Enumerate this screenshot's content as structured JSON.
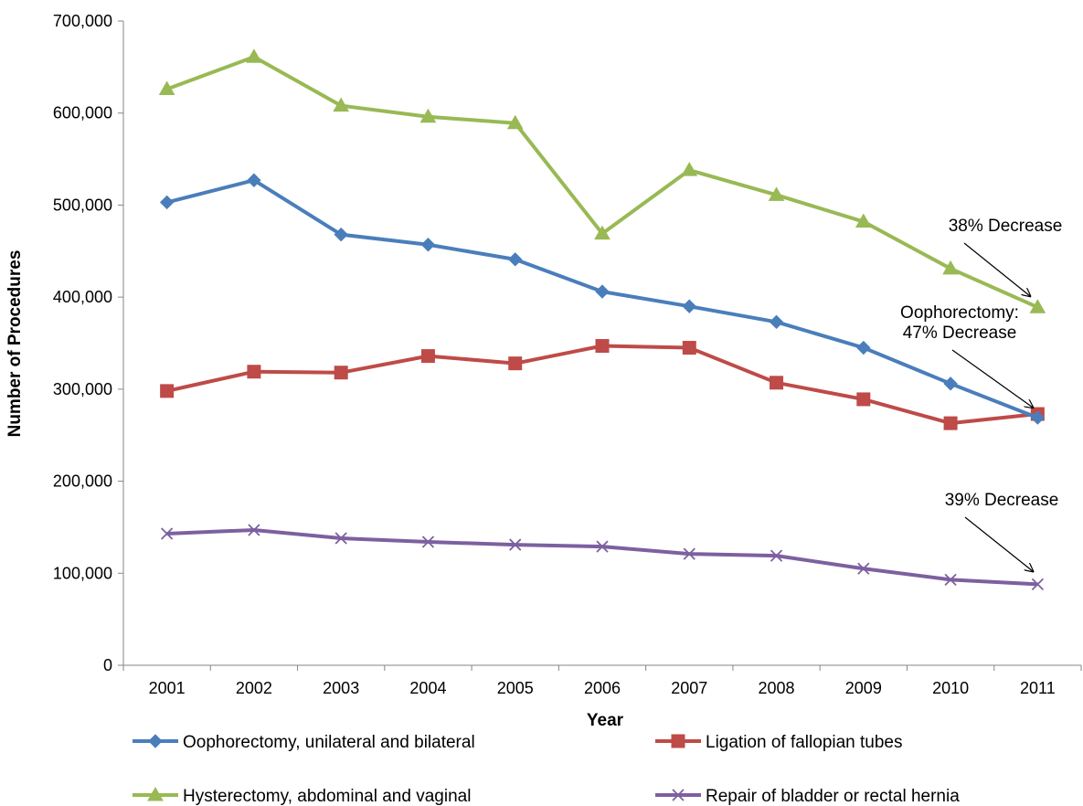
{
  "chart_data": {
    "type": "line",
    "title": "",
    "xlabel": "Year",
    "ylabel": "Number of Procedures",
    "x": [
      "2001",
      "2002",
      "2003",
      "2004",
      "2005",
      "2006",
      "2007",
      "2008",
      "2009",
      "2010",
      "2011"
    ],
    "ylim": [
      0,
      700000
    ],
    "yticks": [
      0,
      100000,
      200000,
      300000,
      400000,
      500000,
      600000,
      700000
    ],
    "ytick_labels": [
      "0",
      "100,000",
      "200,000",
      "300,000",
      "400,000",
      "500,000",
      "600,000",
      "700,000"
    ],
    "grid": false,
    "legend_position": "bottom",
    "series": [
      {
        "name": "Oophorectomy, unilateral and bilateral",
        "color": "#4a7ebb",
        "marker": "diamond",
        "values": [
          503000,
          527000,
          468000,
          457000,
          441000,
          406000,
          390000,
          373000,
          345000,
          306000,
          269000
        ]
      },
      {
        "name": "Ligation of fallopian tubes",
        "color": "#be4b48",
        "marker": "square",
        "values": [
          298000,
          319000,
          318000,
          336000,
          328000,
          347000,
          345000,
          307000,
          289000,
          263000,
          273000
        ]
      },
      {
        "name": "Hysterectomy, abdominal and vaginal",
        "color": "#98b954",
        "marker": "triangle",
        "values": [
          626000,
          661000,
          608000,
          596000,
          589000,
          469000,
          538000,
          511000,
          482000,
          431000,
          389000
        ]
      },
      {
        "name": "Repair of bladder or rectal hernia",
        "color": "#7d60a0",
        "marker": "x",
        "values": [
          143000,
          147000,
          138000,
          134000,
          131000,
          129000,
          121000,
          119000,
          105000,
          93000,
          88000
        ]
      }
    ],
    "annotations": [
      {
        "text": "38% Decrease",
        "series": 2,
        "point": 10
      },
      {
        "text": "Oophorectomy:\n47% Decrease",
        "series": 0,
        "point": 10
      },
      {
        "text": "39% Decrease",
        "series": 3,
        "point": 10
      }
    ]
  }
}
